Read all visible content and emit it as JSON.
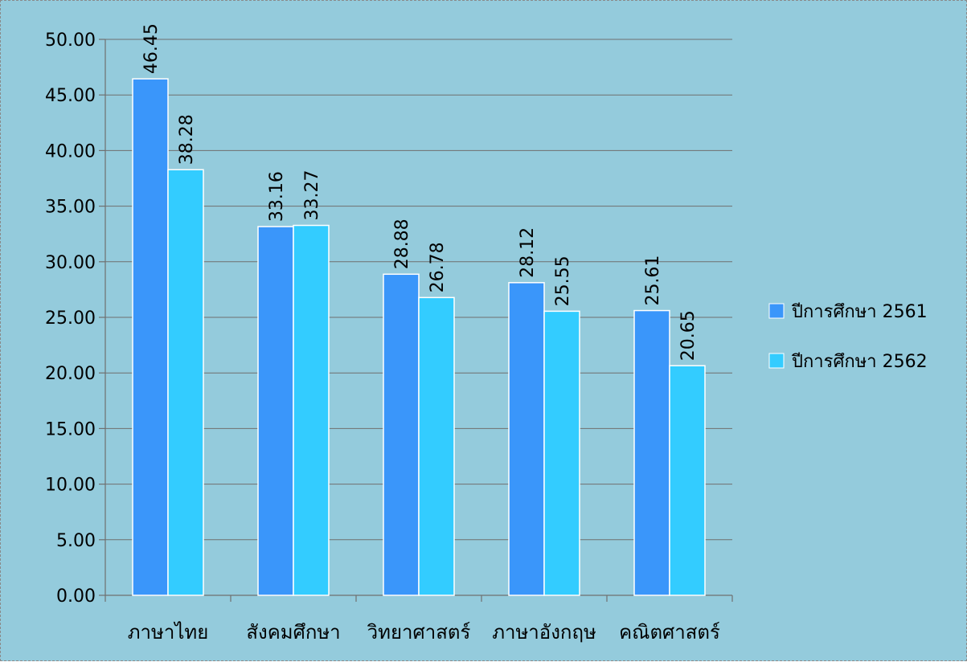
{
  "chart_data": {
    "type": "bar",
    "categories": [
      "ภาษาไทย",
      "สังคมศึกษา",
      "วิทยาศาสตร์",
      "ภาษาอังกฤษ",
      "คณิตศาสตร์"
    ],
    "series": [
      {
        "name": "ปีการศึกษา 2561",
        "values": [
          46.45,
          33.16,
          28.88,
          28.12,
          25.61
        ],
        "color": "#3a96fa"
      },
      {
        "name": "ปีการศึกษา 2562",
        "values": [
          38.28,
          33.27,
          26.78,
          25.55,
          20.65
        ],
        "color": "#33ccff"
      }
    ],
    "y_ticks": [
      "0.00",
      "5.00",
      "10.00",
      "15.00",
      "20.00",
      "25.00",
      "30.00",
      "35.00",
      "40.00",
      "45.00",
      "50.00"
    ],
    "ylim": [
      0,
      50
    ],
    "data_labels": [
      [
        "46.45",
        "33.16",
        "28.88",
        "28.12",
        "25.61"
      ],
      [
        "38.28",
        "33.27",
        "26.78",
        "25.55",
        "20.65"
      ]
    ],
    "grid": true,
    "legend_position": "right",
    "background_color": "#94cbdc",
    "title": "",
    "xlabel": "",
    "ylabel": ""
  }
}
